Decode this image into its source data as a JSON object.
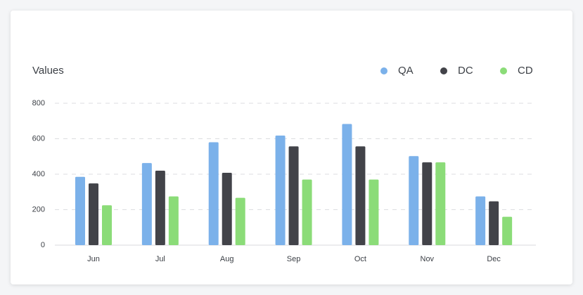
{
  "chart_data": {
    "type": "bar",
    "title": "Values",
    "categories": [
      "Jun",
      "Jul",
      "Aug",
      "Sep",
      "Oct",
      "Nov",
      "Dec"
    ],
    "series": [
      {
        "name": "QA",
        "color": "#7bb1ea",
        "values": [
          385,
          463,
          580,
          618,
          683,
          502,
          275
        ]
      },
      {
        "name": "DC",
        "color": "#424349",
        "values": [
          348,
          420,
          408,
          557,
          557,
          467,
          247
        ]
      },
      {
        "name": "CD",
        "color": "#8bdc78",
        "values": [
          225,
          275,
          267,
          370,
          370,
          467,
          160
        ]
      }
    ],
    "ylim": [
      0,
      800
    ],
    "yticks": [
      "0",
      "200",
      "400",
      "600",
      "800"
    ],
    "grid": true,
    "legend": "top-right"
  }
}
